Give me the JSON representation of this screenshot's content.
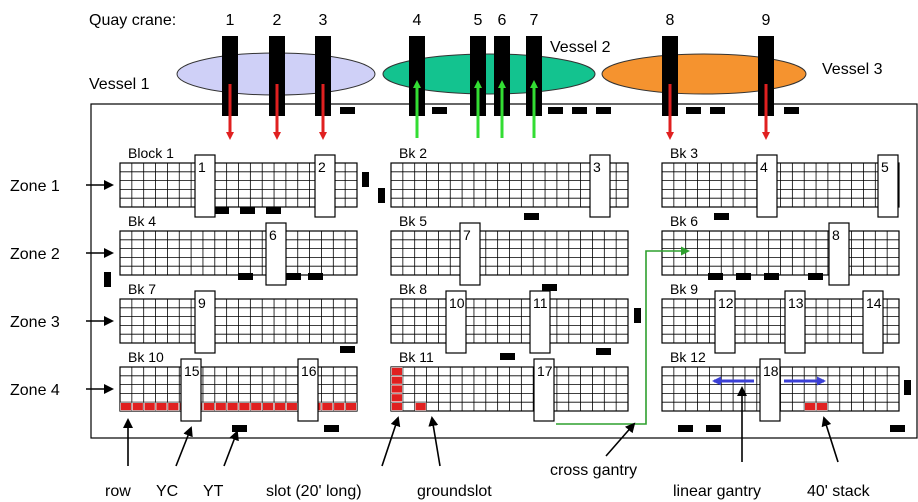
{
  "quay_crane_label": "Quay crane:",
  "cranes": [
    {
      "label": "1",
      "arrow": "down",
      "color": "#e02020"
    },
    {
      "label": "2",
      "arrow": "down",
      "color": "#e02020"
    },
    {
      "label": "3",
      "arrow": "down",
      "color": "#e02020"
    },
    {
      "label": "4",
      "arrow": "up",
      "color": "#33dd33"
    },
    {
      "label": "5",
      "arrow": "up",
      "color": "#33dd33"
    },
    {
      "label": "6",
      "arrow": "up",
      "color": "#33dd33"
    },
    {
      "label": "7",
      "arrow": "up",
      "color": "#33dd33"
    },
    {
      "label": "8",
      "arrow": "down",
      "color": "#e02020"
    },
    {
      "label": "9",
      "arrow": "down",
      "color": "#e02020"
    }
  ],
  "vessels": [
    {
      "label": "Vessel 1",
      "color": "#cfd0f7"
    },
    {
      "label": "Vessel 2",
      "color": "#13c38f"
    },
    {
      "label": "Vessel 3",
      "color": "#f5932f"
    }
  ],
  "zones": [
    "Zone 1",
    "Zone 2",
    "Zone 3",
    "Zone 4"
  ],
  "blocks": [
    "Block 1",
    "Bk 2",
    "Bk 3",
    "Bk 4",
    "Bk 5",
    "Bk 6",
    "Bk 7",
    "Bk 8",
    "Bk 9",
    "Bk 10",
    "Bk 11",
    "Bk 12"
  ],
  "yard_cranes": [
    "1",
    "2",
    "3",
    "4",
    "5",
    "6",
    "7",
    "8",
    "9",
    "10",
    "11",
    "12",
    "13",
    "14",
    "15",
    "16",
    "17",
    "18"
  ],
  "legend": {
    "row": "row",
    "yc": "YC",
    "yt": "YT",
    "slot": "slot (20' long)",
    "groundslot": "groundslot",
    "cross_gantry": "cross gantry",
    "linear_gantry": "linear gantry",
    "stack40": "40' stack"
  },
  "colors": {
    "highlight": "#e02020",
    "gantry_green": "#2ea02e",
    "gantry_blue": "#3b3fd6"
  }
}
